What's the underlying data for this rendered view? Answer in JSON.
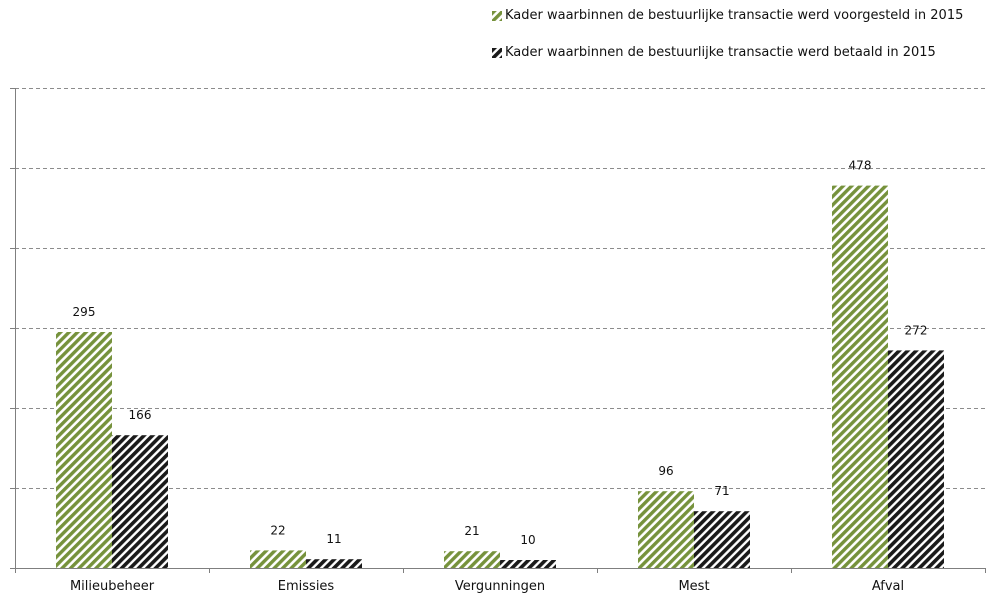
{
  "chart_data": {
    "type": "bar",
    "categories": [
      "Milieubeheer",
      "Emissies",
      "Vergunningen",
      "Mest",
      "Afval"
    ],
    "series": [
      {
        "name": "Kader waarbinnen de bestuurlijke transactie werd voorgesteld in 2015",
        "values": [
          295,
          22,
          21,
          96,
          478
        ],
        "color": "#76923c"
      },
      {
        "name": "Kader waarbinnen de bestuurlijke transactie werd betaald in 2015",
        "values": [
          166,
          11,
          10,
          71,
          272
        ],
        "color": "#1a1a1a"
      }
    ],
    "ylim": [
      0,
      600
    ],
    "grid": true,
    "legend": "top-right",
    "data_labels": true,
    "y_tick_labels_visible": false
  }
}
